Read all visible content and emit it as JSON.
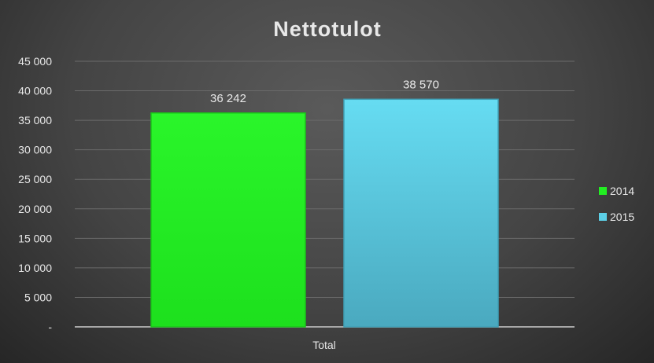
{
  "chart_data": {
    "type": "bar",
    "title": "Nettotulot",
    "categories": [
      "Total"
    ],
    "series": [
      {
        "name": "2014",
        "values": [
          36242
        ],
        "label": "36 242",
        "color": "#22ee22"
      },
      {
        "name": "2015",
        "values": [
          38570
        ],
        "label": "38 570",
        "color": "#5ccfe6"
      }
    ],
    "ylim": [
      0,
      45000
    ],
    "yticks": [
      0,
      5000,
      10000,
      15000,
      20000,
      25000,
      30000,
      35000,
      40000,
      45000
    ],
    "ytick_labels": [
      "-",
      "5 000",
      "10 000",
      "15 000",
      "20 000",
      "25 000",
      "30 000",
      "35 000",
      "40 000",
      "45 000"
    ],
    "grid": true,
    "legend": "right"
  }
}
